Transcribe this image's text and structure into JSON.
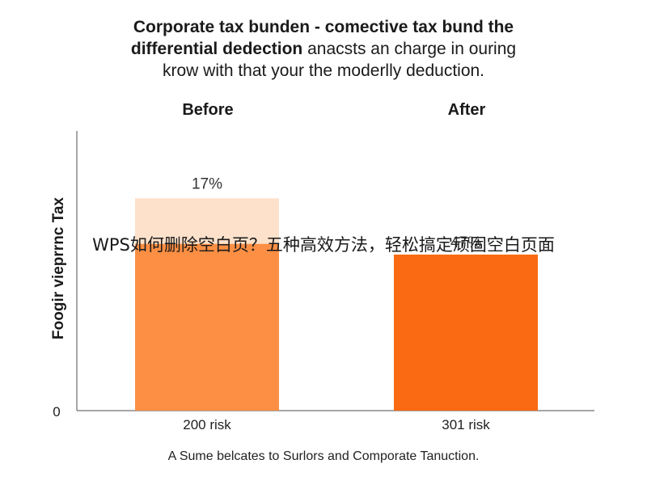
{
  "title": {
    "line1_bold": "Corporate tax bunden - comective tax bund the",
    "line2_bold": "differential dedection",
    "line2_rest": " anacsts an charge in ouring",
    "line3": "krow with that your the moderlly deduction."
  },
  "overlay_text": "WPS如何删除空白页？五种高效方法，轻松搞定顽固空白页面",
  "caption": "A Sume belcates to Surlors and Comporate Tanuction.",
  "chart_data": {
    "type": "bar",
    "panel_labels": [
      "Before",
      "After"
    ],
    "categories": [
      "200 risk",
      "301 risk"
    ],
    "values": [
      17,
      47
    ],
    "data_labels": [
      "17%",
      "47%"
    ],
    "bar_heights_relative": [
      0.758,
      0.558
    ],
    "ylabel": "Foogir vieprrnc Tax",
    "ytick_labels": [
      "0"
    ],
    "grid": false,
    "legend": "none",
    "colors": {
      "before_bar": "#fc8f44",
      "after_bar": "#f96a12",
      "before_bar_top_band": "#fde1cb",
      "axis": "#888888"
    }
  }
}
